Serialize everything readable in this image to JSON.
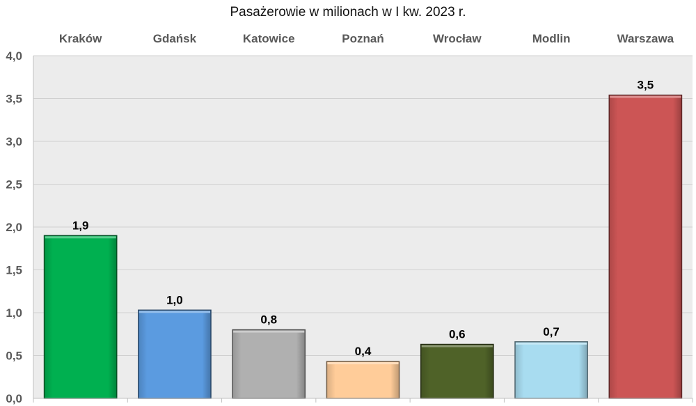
{
  "chart_data": {
    "type": "bar",
    "title": "Pasażerowie w milionach w I kw. 2023 r.",
    "categories": [
      "Kraków",
      "Gdańsk",
      "Katowice",
      "Poznań",
      "Wrocław",
      "Modlin",
      "Warszawa"
    ],
    "values": [
      1.9,
      1.03,
      0.8,
      0.43,
      0.63,
      0.66,
      3.54
    ],
    "data_labels": [
      "1,9",
      "1,0",
      "0,8",
      "0,4",
      "0,6",
      "0,7",
      "3,5"
    ],
    "bar_colors": [
      "#00b050",
      "#5b9be0",
      "#b0b0b0",
      "#ffcc99",
      "#4f6228",
      "#a8dcf0",
      "#cc5555"
    ],
    "yticks": [
      0,
      0.5,
      1,
      1.5,
      2,
      2.5,
      3,
      3.5,
      4
    ],
    "ytick_labels": [
      "0,0",
      "0,5",
      "1,0",
      "1,5",
      "2,0",
      "2,5",
      "3,0",
      "3,5",
      "4,0"
    ],
    "ylim": [
      0,
      4
    ],
    "category_labels_position": "top",
    "grid": true,
    "plot_background": "#ececec"
  }
}
